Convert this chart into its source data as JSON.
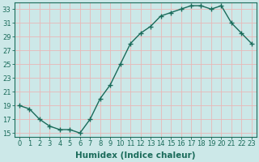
{
  "x": [
    0,
    1,
    2,
    3,
    4,
    5,
    6,
    7,
    8,
    9,
    10,
    11,
    12,
    13,
    14,
    15,
    16,
    17,
    18,
    19,
    20,
    21,
    22,
    23
  ],
  "y": [
    19,
    18.5,
    17,
    16,
    15.5,
    15.5,
    15,
    17,
    20,
    22,
    25,
    28,
    29.5,
    30.5,
    32,
    32.5,
    33,
    33.5,
    33.5,
    33,
    33.5,
    31,
    29.5,
    28
  ],
  "line_color": "#1a6b5a",
  "marker": "+",
  "marker_size": 4,
  "bg_color": "#cce8e8",
  "grid_color": "#e8b8b8",
  "xlabel": "Humidex (Indice chaleur)",
  "xlim": [
    -0.5,
    23.5
  ],
  "ylim": [
    14.5,
    34
  ],
  "yticks": [
    15,
    17,
    19,
    21,
    23,
    25,
    27,
    29,
    31,
    33
  ],
  "xticks": [
    0,
    1,
    2,
    3,
    4,
    5,
    6,
    7,
    8,
    9,
    10,
    11,
    12,
    13,
    14,
    15,
    16,
    17,
    18,
    19,
    20,
    21,
    22,
    23
  ],
  "tick_label_fontsize": 6,
  "xlabel_fontsize": 7.5,
  "line_width": 1.0
}
